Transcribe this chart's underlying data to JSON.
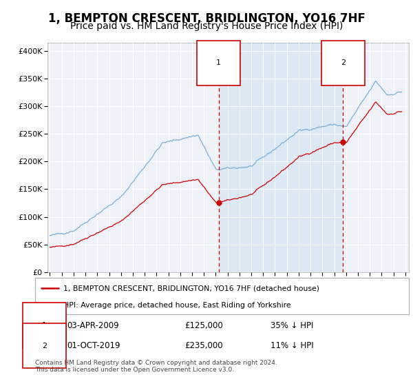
{
  "title": "1, BEMPTON CRESCENT, BRIDLINGTON, YO16 7HF",
  "subtitle": "Price paid vs. HM Land Registry's House Price Index (HPI)",
  "title_fontsize": 12,
  "subtitle_fontsize": 10,
  "bg_color": "#ffffff",
  "plot_bg_color": "#dde8f5",
  "plot_bg_color2": "#eef2f8",
  "grid_color": "#ffffff",
  "ylabel_ticks": [
    "£0",
    "£50K",
    "£100K",
    "£150K",
    "£200K",
    "£250K",
    "£300K",
    "£350K",
    "£400K"
  ],
  "ytick_values": [
    0,
    50000,
    100000,
    150000,
    200000,
    250000,
    300000,
    350000,
    400000
  ],
  "ylim": [
    0,
    415000
  ],
  "xlim_start": 1994.8,
  "xlim_end": 2025.3,
  "sale1_x": 2009.25,
  "sale1_y": 125000,
  "sale1_label": "1",
  "sale1_date": "03-APR-2009",
  "sale1_price": "£125,000",
  "sale1_hpi": "35% ↓ HPI",
  "sale2_x": 2019.75,
  "sale2_y": 235000,
  "sale2_label": "2",
  "sale2_date": "01-OCT-2019",
  "sale2_price": "£235,000",
  "sale2_hpi": "11% ↓ HPI",
  "line_color_property": "#cc0000",
  "line_color_hpi": "#7aadd4",
  "legend_label_property": "1, BEMPTON CRESCENT, BRIDLINGTON, YO16 7HF (detached house)",
  "legend_label_hpi": "HPI: Average price, detached house, East Riding of Yorkshire",
  "footer": "Contains HM Land Registry data © Crown copyright and database right 2024.\nThis data is licensed under the Open Government Licence v3.0."
}
